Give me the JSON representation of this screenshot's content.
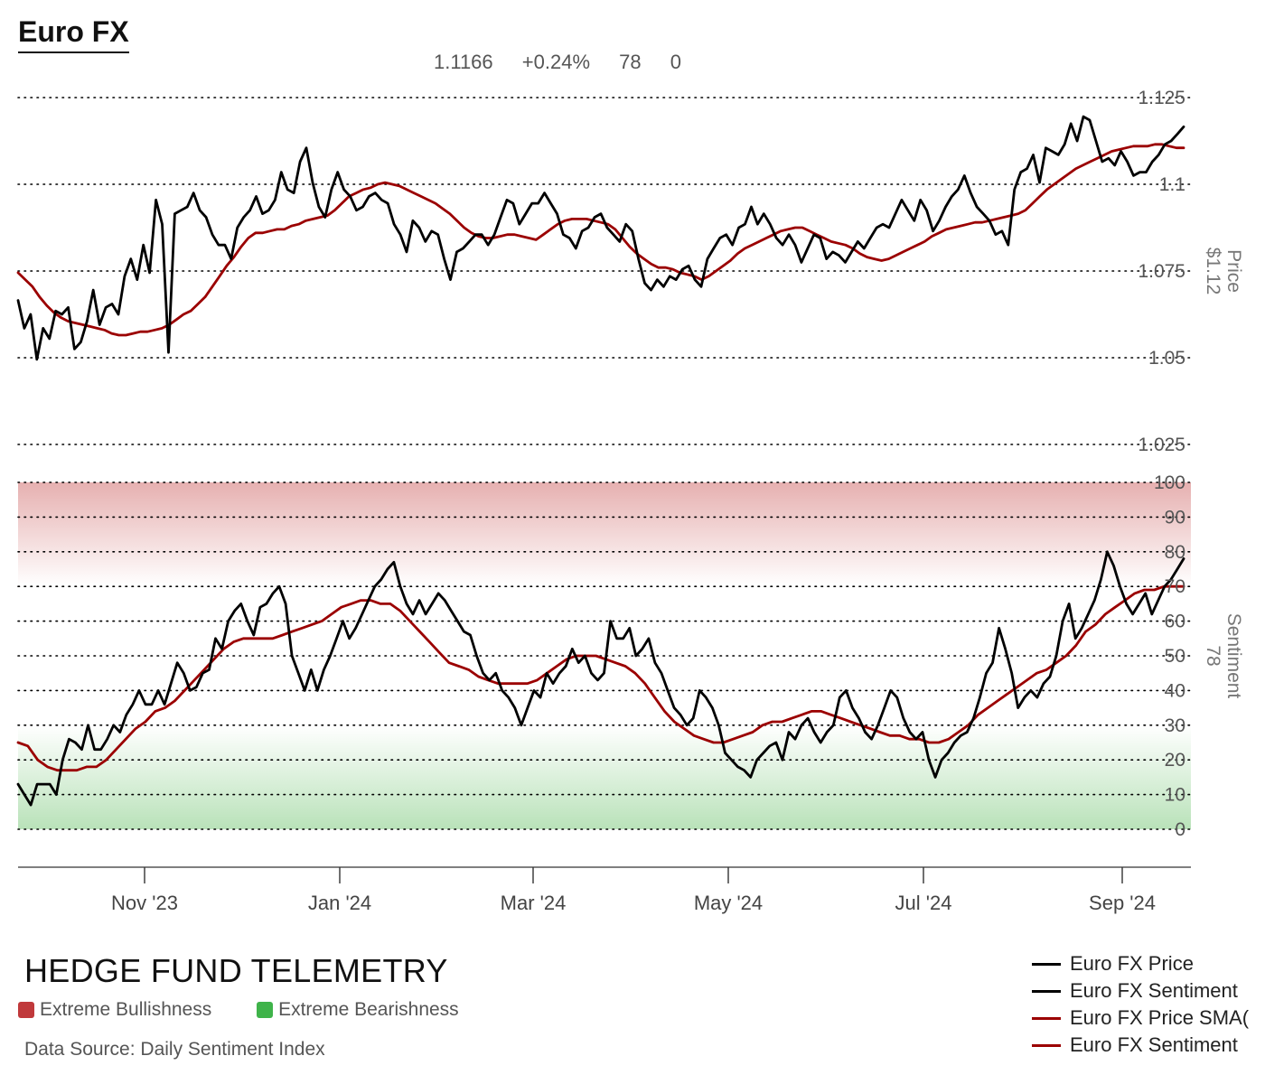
{
  "title": "Euro FX",
  "stats": {
    "price": "1.1166",
    "change": "+0.24%",
    "sentiment": "78",
    "extra": "0"
  },
  "brand": "HEDGE FUND TELEMETRY",
  "zones": {
    "bull_label": "Extreme Bullishness",
    "bear_label": "Extreme Bearishness",
    "bull_color": "#c0393b",
    "bear_color": "#3fb34a"
  },
  "source": "Data Source: Daily Sentiment Index",
  "colors": {
    "price": "#000000",
    "sma": "#9b0000",
    "grid": "#000000",
    "axis_text": "#555555"
  },
  "legend": [
    {
      "label": "Euro FX Price",
      "color": "#000000"
    },
    {
      "label": "Euro FX Sentiment",
      "color": "#000000"
    },
    {
      "label": "Euro FX Price SMA(",
      "color": "#9b0000"
    },
    {
      "label": "Euro FX Sentiment",
      "color": "#9b0000"
    }
  ],
  "chart_data": {
    "type": "line",
    "x_ticks": [
      "Nov '23",
      "Jan '24",
      "Mar '24",
      "May '24",
      "Jul '24",
      "Sep '24"
    ],
    "price_panel": {
      "ylabel": "Price",
      "last_label": "$1.12",
      "ylim": [
        1.025,
        1.125
      ],
      "y_ticks": [
        "1.125",
        "1.1",
        "1.075",
        "1.05",
        "1.025"
      ],
      "series": [
        {
          "values": [
            1.0665,
            1.0585,
            1.0625,
            1.0495,
            1.0585,
            1.0555,
            1.0635,
            1.0625,
            1.0645,
            1.0525,
            1.0545,
            1.0605,
            1.0695,
            1.0595,
            1.0645,
            1.0655,
            1.0625,
            1.0735,
            1.0785,
            1.0725,
            1.0825,
            1.0745,
            1.0955,
            1.0885,
            1.0515,
            1.0915,
            1.0925,
            1.0935,
            1.0975,
            1.0925,
            1.0905,
            1.0855,
            1.0825,
            1.0825,
            1.0785,
            1.0875,
            1.0905,
            1.0925,
            1.0965,
            1.0915,
            1.0925,
            1.0955,
            1.1035,
            1.0985,
            1.0975,
            1.1065,
            1.1105,
            1.1005,
            1.0935,
            1.0905,
            1.0985,
            1.1035,
            1.0985,
            1.0965,
            1.0925,
            1.0935,
            1.0965,
            1.0975,
            1.0955,
            1.0945,
            1.0885,
            1.0855,
            1.0805,
            1.0895,
            1.0875,
            1.0835,
            1.0865,
            1.0855,
            1.0785,
            1.0725,
            1.0805,
            1.0815,
            1.0835,
            1.0855,
            1.0855,
            1.0825,
            1.0855,
            1.0905,
            1.0955,
            1.0945,
            1.0885,
            1.0915,
            1.0945,
            1.0945,
            1.0975,
            1.0945,
            1.0915,
            1.0855,
            1.0845,
            1.0815,
            1.0865,
            1.0875,
            1.0905,
            1.0915,
            1.0875,
            1.0855,
            1.0835,
            1.0885,
            1.0865,
            1.0785,
            1.0715,
            1.0695,
            1.0725,
            1.0705,
            1.0735,
            1.0725,
            1.0755,
            1.0765,
            1.0725,
            1.0705,
            1.0785,
            1.0815,
            1.0845,
            1.0855,
            1.0825,
            1.0875,
            1.0885,
            1.0935,
            1.0885,
            1.0915,
            1.0885,
            1.0845,
            1.0825,
            1.0855,
            1.0825,
            1.0775,
            1.0815,
            1.0855,
            1.0845,
            1.0785,
            1.0805,
            1.0795,
            1.0775,
            1.0805,
            1.0835,
            1.0815,
            1.0845,
            1.0875,
            1.0885,
            1.0875,
            1.0915,
            1.0955,
            1.0925,
            1.0895,
            1.0955,
            1.0925,
            1.0865,
            1.0895,
            1.0935,
            1.0965,
            1.0985,
            1.1025,
            1.0975,
            1.0935,
            1.0915,
            1.0895,
            1.0855,
            1.0865,
            1.0825,
            1.0985,
            1.1035,
            1.1045,
            1.1085,
            1.1005,
            1.1105,
            1.1095,
            1.1085,
            1.1115,
            1.1175,
            1.1125,
            1.1195,
            1.1185,
            1.1125,
            1.1065,
            1.1075,
            1.1055,
            1.1095,
            1.1065,
            1.1025,
            1.1035,
            1.1035,
            1.1065,
            1.1085,
            1.1115,
            1.1125,
            1.1145,
            1.1166
          ]
        },
        {
          "values": [
            1.0745,
            1.0725,
            1.0705,
            1.0675,
            1.065,
            1.063,
            1.0615,
            1.0605,
            1.06,
            1.0595,
            1.059,
            1.0585,
            1.058,
            1.057,
            1.0565,
            1.0565,
            1.057,
            1.0575,
            1.0575,
            1.058,
            1.0585,
            1.0595,
            1.061,
            1.0625,
            1.0635,
            1.0655,
            1.0675,
            1.0705,
            1.0735,
            1.0765,
            1.079,
            1.082,
            1.0845,
            1.086,
            1.086,
            1.0865,
            1.087,
            1.087,
            1.088,
            1.0885,
            1.0895,
            1.09,
            1.0905,
            1.091,
            1.0925,
            1.0945,
            1.0965,
            1.0975,
            1.0985,
            1.099,
            1.1,
            1.1005,
            1.1,
            1.0995,
            1.0985,
            1.0975,
            1.0965,
            1.0955,
            1.0945,
            1.093,
            1.0915,
            1.0895,
            1.0875,
            1.086,
            1.085,
            1.0845,
            1.0845,
            1.085,
            1.0855,
            1.0855,
            1.085,
            1.0845,
            1.084,
            1.0855,
            1.087,
            1.0885,
            1.0895,
            1.09,
            1.09,
            1.09,
            1.0895,
            1.089,
            1.0885,
            1.087,
            1.0845,
            1.082,
            1.08,
            1.0785,
            1.077,
            1.076,
            1.076,
            1.0755,
            1.0745,
            1.074,
            1.0735,
            1.0725,
            1.0735,
            1.075,
            1.0765,
            1.078,
            1.08,
            1.0815,
            1.0825,
            1.0835,
            1.0845,
            1.0855,
            1.0865,
            1.087,
            1.0875,
            1.0875,
            1.0865,
            1.0855,
            1.0845,
            1.0835,
            1.083,
            1.0825,
            1.0815,
            1.08,
            1.079,
            1.0785,
            1.078,
            1.0785,
            1.0795,
            1.0805,
            1.0815,
            1.0825,
            1.0835,
            1.085,
            1.086,
            1.087,
            1.0875,
            1.088,
            1.0885,
            1.089,
            1.089,
            1.0895,
            1.09,
            1.0905,
            1.091,
            1.0915,
            1.0925,
            1.0945,
            1.0965,
            1.0985,
            1.1,
            1.1015,
            1.103,
            1.1045,
            1.1055,
            1.1065,
            1.1075,
            1.1085,
            1.1095,
            1.11,
            1.1105,
            1.111,
            1.111,
            1.111,
            1.1115,
            1.1115,
            1.111,
            1.1105,
            1.1105
          ]
        }
      ]
    },
    "sentiment_panel": {
      "ylabel": "Sentiment",
      "last_label": "78",
      "ylim": [
        0,
        100
      ],
      "y_ticks": [
        "100",
        "90",
        "80",
        "70",
        "60",
        "50",
        "40",
        "30",
        "20",
        "10",
        "0"
      ],
      "extreme_bullish_above": 80,
      "extreme_bearish_below": 30,
      "series": [
        {
          "values": [
            13,
            10,
            7,
            13,
            13,
            13,
            10,
            20,
            26,
            25,
            23,
            30,
            23,
            23,
            26,
            30,
            28,
            33,
            36,
            40,
            36,
            36,
            40,
            36,
            42,
            48,
            45,
            40,
            41,
            45,
            46,
            55,
            52,
            60,
            63,
            65,
            60,
            56,
            64,
            65,
            68,
            70,
            65,
            50,
            45,
            40,
            46,
            40,
            46,
            50,
            55,
            60,
            55,
            58,
            62,
            66,
            70,
            72,
            75,
            77,
            70,
            65,
            62,
            66,
            62,
            65,
            68,
            66,
            63,
            60,
            57,
            56,
            50,
            45,
            43,
            45,
            40,
            38,
            35,
            30,
            35,
            40,
            38,
            45,
            42,
            45,
            47,
            52,
            48,
            50,
            45,
            43,
            45,
            60,
            55,
            55,
            58,
            50,
            52,
            55,
            48,
            45,
            40,
            35,
            33,
            30,
            32,
            40,
            38,
            35,
            30,
            22,
            20,
            18,
            17,
            15,
            20,
            22,
            24,
            25,
            20,
            28,
            26,
            30,
            32,
            28,
            25,
            28,
            30,
            38,
            40,
            35,
            32,
            28,
            26,
            30,
            35,
            40,
            38,
            32,
            28,
            26,
            28,
            20,
            15,
            20,
            22,
            25,
            27,
            28,
            32,
            38,
            45,
            48,
            58,
            52,
            45,
            35,
            38,
            40,
            38,
            42,
            44,
            50,
            60,
            65,
            55,
            58,
            62,
            66,
            72,
            80,
            76,
            70,
            65,
            62,
            65,
            68,
            62,
            66,
            70,
            72,
            75,
            78
          ]
        },
        {
          "values": [
            25,
            24,
            20,
            18,
            17,
            17,
            17,
            18,
            18,
            20,
            23,
            26,
            29,
            31,
            34,
            35,
            37,
            40,
            43,
            46,
            49,
            52,
            54,
            55,
            55,
            55,
            55,
            56,
            57,
            58,
            59,
            60,
            62,
            64,
            65,
            66,
            66,
            65,
            65,
            63,
            60,
            57,
            54,
            51,
            48,
            47,
            46,
            44,
            43,
            42,
            42,
            42,
            42,
            43,
            45,
            47,
            49,
            50,
            50,
            50,
            49,
            48,
            47,
            45,
            42,
            38,
            34,
            31,
            29,
            27,
            26,
            25,
            25,
            26,
            27,
            28,
            30,
            31,
            31,
            32,
            33,
            34,
            34,
            33,
            32,
            31,
            30,
            29,
            28,
            27,
            27,
            26,
            26,
            25,
            25,
            26,
            28,
            30,
            33,
            35,
            37,
            39,
            41,
            43,
            45,
            46,
            48,
            50,
            53,
            57,
            59,
            62,
            64,
            66,
            68,
            69,
            69,
            70,
            70,
            70
          ]
        }
      ]
    }
  }
}
